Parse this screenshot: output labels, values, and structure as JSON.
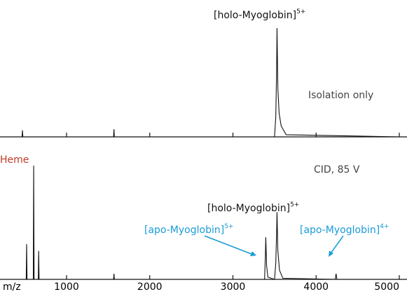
{
  "chart_data": [
    {
      "type": "line",
      "annotations": [
        {
          "text": "[holo-Myoglobin]",
          "sup": "5+",
          "color": "#111111"
        },
        {
          "text": "Isolation only",
          "color": "#444444"
        }
      ],
      "x": [
        200,
        465,
        470,
        475,
        1565,
        1570,
        1575,
        3500,
        3515,
        3525,
        3530,
        3540,
        3555,
        3580,
        3640,
        5000
      ],
      "values": [
        0,
        0,
        6,
        0,
        0,
        7,
        0,
        0,
        18,
        60,
        100,
        45,
        22,
        10,
        2,
        0
      ],
      "color": "#111111",
      "xlim": [
        200,
        5000
      ],
      "xticks": [
        1000,
        2000,
        3000,
        4000,
        5000
      ],
      "ylim": [
        0,
        100
      ]
    },
    {
      "type": "line",
      "annotations": [
        {
          "text": "Heme",
          "color": "#c0392b"
        },
        {
          "text": "CID, 85 V",
          "color": "#444444"
        },
        {
          "text": "[holo-Myoglobin]",
          "sup": "5+",
          "color": "#111111"
        },
        {
          "text": "[apo-Myoglobin]",
          "sup": "5+",
          "color": "#1a9bd7"
        },
        {
          "text": "[apo-Myoglobin]",
          "sup": "4+",
          "color": "#1a9bd7"
        }
      ],
      "x": [
        200,
        515,
        520,
        525,
        600,
        605,
        610,
        660,
        665,
        670,
        1565,
        1570,
        1575,
        3380,
        3390,
        3395,
        3405,
        3420,
        3500,
        3515,
        3525,
        3530,
        3540,
        3560,
        3600,
        4230,
        4240,
        4250,
        5000
      ],
      "values": [
        0,
        0,
        31,
        0,
        0,
        100,
        0,
        0,
        25,
        0,
        0,
        5,
        0,
        0,
        20,
        37,
        12,
        2,
        0,
        14,
        40,
        59,
        25,
        8,
        1,
        0,
        5,
        0,
        0
      ],
      "color": "#111111",
      "x_label": "m/z",
      "xlim": [
        200,
        5000
      ],
      "xticks": [
        1000,
        2000,
        3000,
        4000,
        5000
      ],
      "ylim": [
        0,
        100
      ]
    }
  ]
}
